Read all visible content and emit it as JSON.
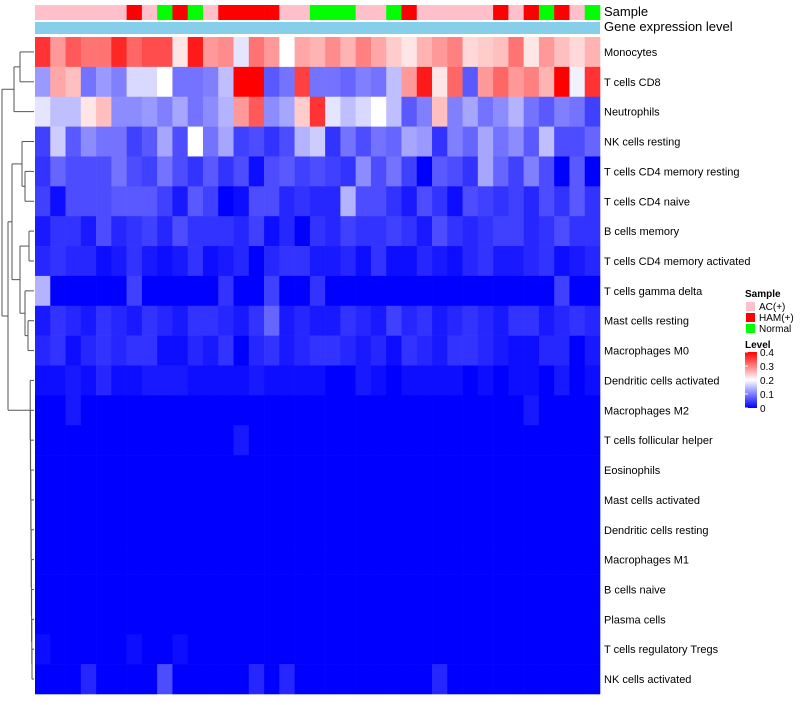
{
  "chart_data": {
    "type": "heatmap",
    "annotation_labels": {
      "sample": "Sample",
      "expression": "Gene expression level"
    },
    "colors": {
      "low": "#0000ff",
      "mid": "#ffffff",
      "high": "#ff0000",
      "expression_bar": "#87ceeb",
      "dendrogram": "#555555",
      "groups": {
        "AC(+)": "#ffc0cb",
        "HAM(+)": "#ff0000",
        "Normal": "#00ff00"
      }
    },
    "samples": [
      "AC(+)",
      "AC(+)",
      "AC(+)",
      "AC(+)",
      "AC(+)",
      "AC(+)",
      "HAM(+)",
      "AC(+)",
      "Normal",
      "HAM(+)",
      "Normal",
      "AC(+)",
      "HAM(+)",
      "HAM(+)",
      "HAM(+)",
      "HAM(+)",
      "AC(+)",
      "AC(+)",
      "Normal",
      "Normal",
      "Normal",
      "AC(+)",
      "AC(+)",
      "Normal",
      "HAM(+)",
      "AC(+)",
      "AC(+)",
      "AC(+)",
      "AC(+)",
      "AC(+)",
      "HAM(+)",
      "AC(+)",
      "HAM(+)",
      "Normal",
      "HAM(+)",
      "AC(+)",
      "Normal"
    ],
    "rows": [
      "Monocytes",
      "T cells CD8",
      "Neutrophils",
      "NK cells resting",
      "T cells CD4 memory resting",
      "T cells CD4 naive",
      "B cells memory",
      "T cells CD4 memory activated",
      "T cells gamma delta",
      "Mast cells resting",
      "Macrophages M0",
      "Dendritic cells activated",
      "Macrophages M2",
      "T cells follicular helper",
      "Eosinophils",
      "Mast cells activated",
      "Dendritic cells resting",
      "Macrophages M1",
      "B cells naive",
      "Plasma cells",
      "T cells regulatory  Tregs",
      "NK cells activated"
    ],
    "values": [
      [
        0.36,
        0.28,
        0.33,
        0.31,
        0.31,
        0.37,
        0.32,
        0.34,
        0.34,
        0.22,
        0.38,
        0.28,
        0.29,
        0.18,
        0.31,
        0.28,
        0.2,
        0.27,
        0.26,
        0.29,
        0.26,
        0.3,
        0.27,
        0.24,
        0.22,
        0.26,
        0.28,
        0.3,
        0.23,
        0.24,
        0.25,
        0.31,
        0.22,
        0.28,
        0.25,
        0.23,
        0.26
      ],
      [
        0.12,
        0.27,
        0.25,
        0.09,
        0.12,
        0.1,
        0.17,
        0.17,
        0.2,
        0.09,
        0.09,
        0.1,
        0.15,
        0.4,
        0.4,
        0.07,
        0.09,
        0.35,
        0.09,
        0.09,
        0.08,
        0.1,
        0.09,
        0.15,
        0.28,
        0.38,
        0.22,
        0.32,
        0.07,
        0.28,
        0.32,
        0.28,
        0.3,
        0.26,
        0.4,
        0.19,
        0.36
      ],
      [
        0.18,
        0.15,
        0.15,
        0.22,
        0.25,
        0.11,
        0.11,
        0.12,
        0.1,
        0.13,
        0.09,
        0.11,
        0.14,
        0.28,
        0.33,
        0.11,
        0.13,
        0.24,
        0.36,
        0.18,
        0.15,
        0.17,
        0.2,
        0.15,
        0.07,
        0.1,
        0.25,
        0.1,
        0.13,
        0.09,
        0.11,
        0.14,
        0.09,
        0.07,
        0.1,
        0.09,
        0.05
      ],
      [
        0.05,
        0.16,
        0.07,
        0.11,
        0.09,
        0.09,
        0.05,
        0.07,
        0.13,
        0.06,
        0.2,
        0.09,
        0.13,
        0.05,
        0.06,
        0.04,
        0.06,
        0.14,
        0.16,
        0.04,
        0.09,
        0.06,
        0.09,
        0.08,
        0.13,
        0.12,
        0.04,
        0.1,
        0.08,
        0.13,
        0.09,
        0.11,
        0.07,
        0.15,
        0.06,
        0.06,
        0.08
      ],
      [
        0.04,
        0.08,
        0.06,
        0.06,
        0.06,
        0.09,
        0.06,
        0.05,
        0.09,
        0.06,
        0.04,
        0.07,
        0.04,
        0.06,
        0.01,
        0.06,
        0.07,
        0.05,
        0.06,
        0.05,
        0.04,
        0.11,
        0.06,
        0.09,
        0.05,
        0.0,
        0.07,
        0.06,
        0.04,
        0.13,
        0.08,
        0.05,
        0.1,
        0.06,
        0.0,
        0.07,
        0.0
      ],
      [
        0.05,
        0.01,
        0.06,
        0.06,
        0.06,
        0.07,
        0.07,
        0.07,
        0.05,
        0.02,
        0.07,
        0.05,
        0.0,
        0.01,
        0.06,
        0.06,
        0.03,
        0.04,
        0.03,
        0.03,
        0.14,
        0.06,
        0.06,
        0.04,
        0.02,
        0.06,
        0.04,
        0.01,
        0.06,
        0.05,
        0.04,
        0.05,
        0.03,
        0.06,
        0.04,
        0.07,
        0.04
      ],
      [
        0.02,
        0.04,
        0.04,
        0.02,
        0.06,
        0.03,
        0.04,
        0.05,
        0.03,
        0.06,
        0.04,
        0.04,
        0.04,
        0.03,
        0.05,
        0.01,
        0.03,
        0.0,
        0.04,
        0.03,
        0.05,
        0.04,
        0.04,
        0.05,
        0.04,
        0.02,
        0.06,
        0.04,
        0.03,
        0.04,
        0.05,
        0.05,
        0.03,
        0.04,
        0.06,
        0.04,
        0.04
      ],
      [
        0.03,
        0.04,
        0.03,
        0.03,
        0.01,
        0.02,
        0.04,
        0.02,
        0.01,
        0.02,
        0.04,
        0.01,
        0.02,
        0.03,
        0.0,
        0.03,
        0.04,
        0.04,
        0.02,
        0.02,
        0.03,
        0.01,
        0.04,
        0.01,
        0.01,
        0.03,
        0.02,
        0.01,
        0.03,
        0.04,
        0.02,
        0.02,
        0.03,
        0.04,
        0.01,
        0.02,
        0.03
      ],
      [
        0.14,
        0.0,
        0.0,
        0.0,
        0.0,
        0.0,
        0.05,
        0.0,
        0.0,
        0.0,
        0.0,
        0.0,
        0.04,
        0.0,
        0.0,
        0.05,
        0.0,
        0.0,
        0.04,
        0.0,
        0.0,
        0.0,
        0.0,
        0.0,
        0.0,
        0.0,
        0.0,
        0.0,
        0.0,
        0.0,
        0.0,
        0.0,
        0.0,
        0.0,
        0.05,
        0.0,
        0.0
      ],
      [
        0.02,
        0.04,
        0.03,
        0.02,
        0.04,
        0.03,
        0.02,
        0.04,
        0.03,
        0.02,
        0.04,
        0.04,
        0.03,
        0.02,
        0.04,
        0.08,
        0.02,
        0.03,
        0.02,
        0.02,
        0.04,
        0.03,
        0.02,
        0.05,
        0.03,
        0.04,
        0.02,
        0.03,
        0.04,
        0.03,
        0.02,
        0.04,
        0.04,
        0.02,
        0.03,
        0.04,
        0.03
      ],
      [
        0.03,
        0.04,
        0.01,
        0.03,
        0.04,
        0.03,
        0.04,
        0.04,
        0.01,
        0.01,
        0.03,
        0.02,
        0.04,
        0.0,
        0.03,
        0.04,
        0.02,
        0.03,
        0.04,
        0.04,
        0.03,
        0.02,
        0.03,
        0.01,
        0.04,
        0.03,
        0.02,
        0.04,
        0.04,
        0.03,
        0.02,
        0.01,
        0.01,
        0.03,
        0.03,
        0.0,
        0.02
      ],
      [
        0.01,
        0.01,
        0.02,
        0.01,
        0.03,
        0.01,
        0.01,
        0.02,
        0.02,
        0.02,
        0.01,
        0.01,
        0.01,
        0.01,
        0.02,
        0.01,
        0.01,
        0.01,
        0.01,
        0.0,
        0.0,
        0.02,
        0.01,
        0.0,
        0.01,
        0.01,
        0.01,
        0.01,
        0.0,
        0.01,
        0.0,
        0.01,
        0.01,
        0.0,
        0.02,
        0.0,
        0.01
      ],
      [
        0.0,
        0.0,
        0.02,
        0.0,
        0.0,
        0.0,
        0.0,
        0.0,
        0.0,
        0.0,
        0.0,
        0.0,
        0.0,
        0.0,
        0.0,
        0.0,
        0.0,
        0.0,
        0.0,
        0.0,
        0.0,
        0.0,
        0.0,
        0.0,
        0.0,
        0.0,
        0.0,
        0.0,
        0.0,
        0.0,
        0.0,
        0.0,
        0.02,
        0.0,
        0.0,
        0.0,
        0.0
      ],
      [
        0.0,
        0.0,
        0.0,
        0.0,
        0.0,
        0.0,
        0.0,
        0.0,
        0.0,
        0.0,
        0.0,
        0.0,
        0.0,
        0.02,
        0.0,
        0.0,
        0.0,
        0.0,
        0.0,
        0.0,
        0.0,
        0.0,
        0.0,
        0.0,
        0.0,
        0.0,
        0.0,
        0.0,
        0.0,
        0.0,
        0.0,
        0.0,
        0.0,
        0.0,
        0.0,
        0.0,
        0.0
      ],
      [
        0.0,
        0.0,
        0.0,
        0.0,
        0.0,
        0.0,
        0.0,
        0.0,
        0.0,
        0.0,
        0.0,
        0.0,
        0.0,
        0.0,
        0.0,
        0.0,
        0.0,
        0.0,
        0.0,
        0.0,
        0.0,
        0.0,
        0.0,
        0.0,
        0.0,
        0.0,
        0.0,
        0.0,
        0.0,
        0.0,
        0.0,
        0.0,
        0.0,
        0.0,
        0.0,
        0.0,
        0.0
      ],
      [
        0.0,
        0.0,
        0.0,
        0.0,
        0.0,
        0.0,
        0.0,
        0.0,
        0.0,
        0.0,
        0.0,
        0.0,
        0.0,
        0.0,
        0.0,
        0.0,
        0.0,
        0.0,
        0.0,
        0.0,
        0.0,
        0.0,
        0.0,
        0.0,
        0.0,
        0.0,
        0.0,
        0.0,
        0.0,
        0.0,
        0.0,
        0.0,
        0.0,
        0.0,
        0.0,
        0.0,
        0.0
      ],
      [
        0.0,
        0.0,
        0.0,
        0.0,
        0.0,
        0.0,
        0.0,
        0.0,
        0.0,
        0.0,
        0.0,
        0.0,
        0.0,
        0.0,
        0.0,
        0.0,
        0.0,
        0.0,
        0.0,
        0.0,
        0.0,
        0.0,
        0.0,
        0.0,
        0.0,
        0.0,
        0.0,
        0.0,
        0.0,
        0.0,
        0.0,
        0.0,
        0.0,
        0.0,
        0.0,
        0.0,
        0.0
      ],
      [
        0.0,
        0.0,
        0.0,
        0.0,
        0.0,
        0.0,
        0.0,
        0.0,
        0.0,
        0.0,
        0.0,
        0.0,
        0.0,
        0.0,
        0.0,
        0.0,
        0.0,
        0.0,
        0.0,
        0.0,
        0.0,
        0.0,
        0.0,
        0.0,
        0.0,
        0.0,
        0.0,
        0.0,
        0.0,
        0.0,
        0.0,
        0.0,
        0.0,
        0.0,
        0.0,
        0.0,
        0.0
      ],
      [
        0.0,
        0.0,
        0.0,
        0.0,
        0.0,
        0.0,
        0.0,
        0.0,
        0.0,
        0.0,
        0.0,
        0.0,
        0.0,
        0.0,
        0.0,
        0.0,
        0.0,
        0.0,
        0.0,
        0.0,
        0.0,
        0.0,
        0.0,
        0.0,
        0.0,
        0.0,
        0.0,
        0.0,
        0.0,
        0.0,
        0.0,
        0.0,
        0.0,
        0.0,
        0.0,
        0.0,
        0.0
      ],
      [
        0.0,
        0.0,
        0.0,
        0.0,
        0.0,
        0.0,
        0.0,
        0.0,
        0.0,
        0.0,
        0.0,
        0.0,
        0.0,
        0.0,
        0.0,
        0.0,
        0.0,
        0.0,
        0.0,
        0.0,
        0.0,
        0.0,
        0.0,
        0.0,
        0.0,
        0.0,
        0.0,
        0.0,
        0.0,
        0.0,
        0.0,
        0.0,
        0.0,
        0.0,
        0.0,
        0.0,
        0.0
      ],
      [
        0.01,
        0.0,
        0.0,
        0.0,
        0.0,
        0.0,
        0.01,
        0.0,
        0.0,
        0.01,
        0.0,
        0.0,
        0.0,
        0.0,
        0.0,
        0.0,
        0.0,
        0.0,
        0.0,
        0.0,
        0.0,
        0.0,
        0.0,
        0.0,
        0.0,
        0.0,
        0.0,
        0.0,
        0.0,
        0.0,
        0.0,
        0.0,
        0.0,
        0.0,
        0.0,
        0.0,
        0.0
      ],
      [
        0.0,
        0.0,
        0.0,
        0.03,
        0.0,
        0.0,
        0.0,
        0.0,
        0.06,
        0.0,
        0.0,
        0.0,
        0.0,
        0.0,
        0.03,
        0.0,
        0.03,
        0.0,
        0.0,
        0.0,
        0.0,
        0.0,
        0.0,
        0.0,
        0.0,
        0.0,
        0.03,
        0.0,
        0.0,
        0.0,
        0.0,
        0.0,
        0.0,
        0.0,
        0.0,
        0.0,
        0.0
      ]
    ],
    "scale": {
      "min": 0,
      "max": 0.4,
      "ticks": [
        "0.4",
        "0.3",
        "0.2",
        "0.1",
        "0"
      ]
    },
    "legend": {
      "sample_title": "Sample",
      "sample_groups": [
        "AC(+)",
        "HAM(+)",
        "Normal"
      ],
      "level_title": "Level"
    }
  }
}
